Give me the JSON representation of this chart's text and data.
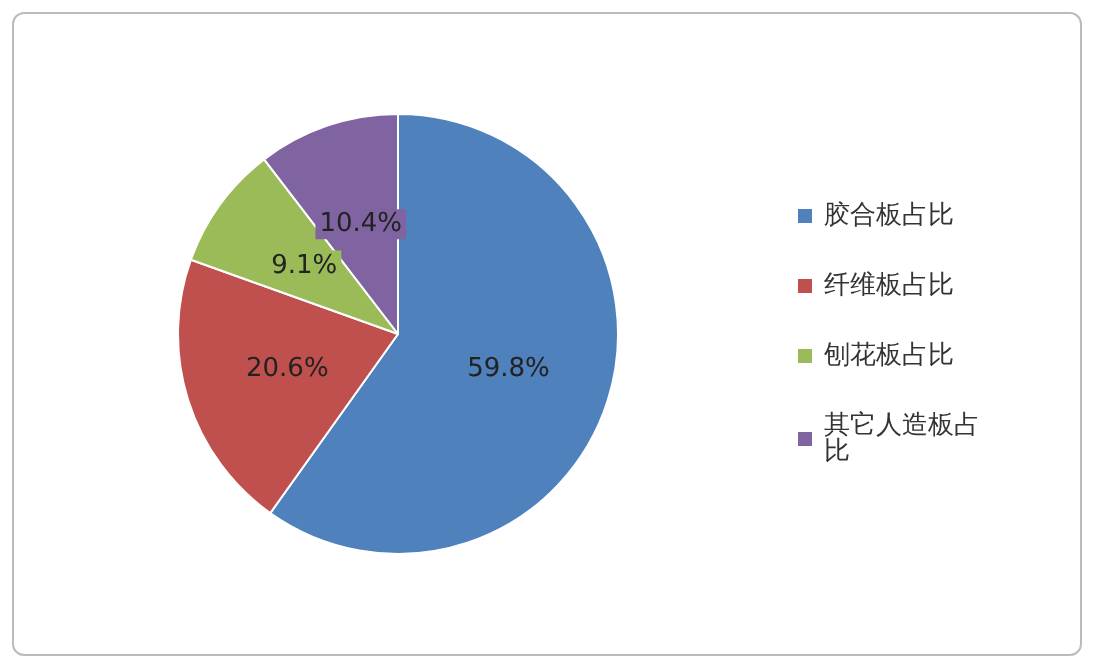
{
  "chart_data": {
    "type": "pie",
    "categories": [
      "胶合板占比",
      "纤维板占比",
      "刨花板占比",
      "其它人造板占比"
    ],
    "values": [
      59.8,
      20.6,
      9.1,
      10.4
    ],
    "colors": [
      "#4f81bd",
      "#c0504d",
      "#9bbb59",
      "#8064a2"
    ],
    "value_labels": [
      "59.8%",
      "20.6%",
      "9.1%",
      "10.4%"
    ],
    "legend": "right"
  }
}
